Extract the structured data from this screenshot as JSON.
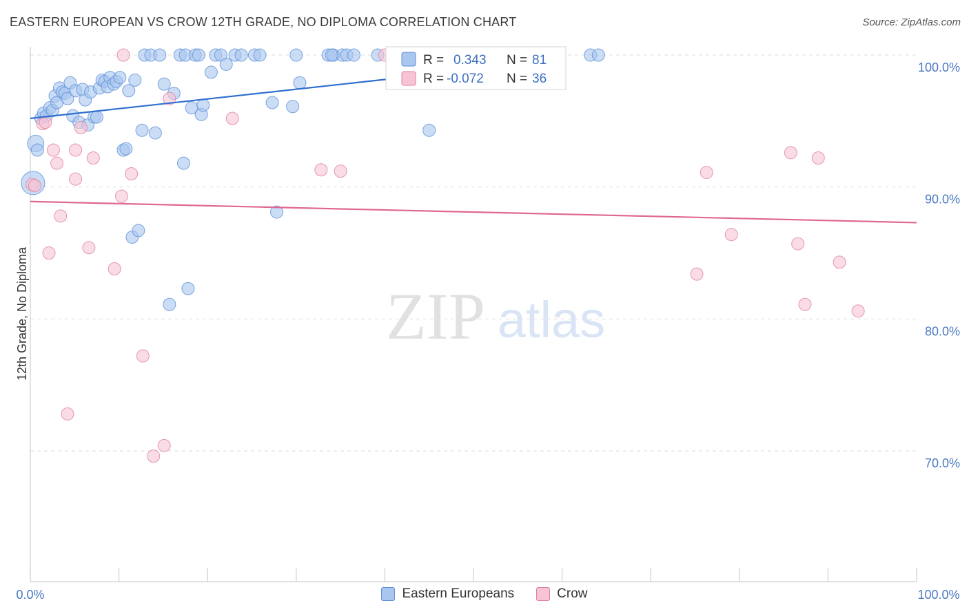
{
  "title": "EASTERN EUROPEAN VS CROW 12TH GRADE, NO DIPLOMA CORRELATION CHART",
  "source": "Source: ZipAtlas.com",
  "watermark": {
    "zip": "ZIP",
    "atlas": "atlas"
  },
  "chart_data": {
    "type": "scatter",
    "ylabel": "12th Grade, No Diploma",
    "xlim": [
      0,
      100
    ],
    "ylim": [
      60,
      101.5
    ],
    "x_tick_labels": [
      "0.0%",
      "100.0%"
    ],
    "y_ticks": [
      {
        "value": 100,
        "label": "100.0%"
      },
      {
        "value": 90,
        "label": "90.0%"
      },
      {
        "value": 80,
        "label": "80.0%"
      },
      {
        "value": 70,
        "label": "70.0%"
      }
    ],
    "grid": "horizontal-dashed",
    "legend": {
      "placement": "top-center",
      "rows": [
        {
          "r_label": "R =",
          "r_value": "0.343",
          "n_label": "N =",
          "n_value": "81"
        },
        {
          "r_label": "R =",
          "r_value": "-0.072",
          "n_label": "N =",
          "n_value": "36"
        }
      ]
    },
    "series": [
      {
        "name": "Eastern Europeans",
        "color": "#5b8fd9",
        "fill": "#a9c6ee",
        "trend": {
          "x": [
            0,
            57
          ],
          "y": [
            95.2,
            99.4
          ]
        },
        "points": [
          [
            0.3,
            90.3
          ],
          [
            0.6,
            93.3
          ],
          [
            0.8,
            92.8
          ],
          [
            1.2,
            95.2
          ],
          [
            1.5,
            95.6
          ],
          [
            1.8,
            95.4
          ],
          [
            2.2,
            96.0
          ],
          [
            2.5,
            95.8
          ],
          [
            2.8,
            96.9
          ],
          [
            3.0,
            96.4
          ],
          [
            3.3,
            97.5
          ],
          [
            3.6,
            97.2
          ],
          [
            3.9,
            97.1
          ],
          [
            4.2,
            96.7
          ],
          [
            4.5,
            97.9
          ],
          [
            4.8,
            95.4
          ],
          [
            5.1,
            97.3
          ],
          [
            5.5,
            94.9
          ],
          [
            5.9,
            97.4
          ],
          [
            6.2,
            96.6
          ],
          [
            6.5,
            94.7
          ],
          [
            6.8,
            97.2
          ],
          [
            7.2,
            95.3
          ],
          [
            7.5,
            95.3
          ],
          [
            7.8,
            97.5
          ],
          [
            8.1,
            98.1
          ],
          [
            8.4,
            98.0
          ],
          [
            8.7,
            97.6
          ],
          [
            9.0,
            98.3
          ],
          [
            9.4,
            97.8
          ],
          [
            9.7,
            98.0
          ],
          [
            10.1,
            98.3
          ],
          [
            10.5,
            92.8
          ],
          [
            10.8,
            92.9
          ],
          [
            11.1,
            97.3
          ],
          [
            11.5,
            86.2
          ],
          [
            11.8,
            98.1
          ],
          [
            12.2,
            86.7
          ],
          [
            12.6,
            94.3
          ],
          [
            12.9,
            100.0
          ],
          [
            13.6,
            100.0
          ],
          [
            14.1,
            94.1
          ],
          [
            14.6,
            100.0
          ],
          [
            15.1,
            97.8
          ],
          [
            15.7,
            81.1
          ],
          [
            16.2,
            97.1
          ],
          [
            16.9,
            100.0
          ],
          [
            17.3,
            91.8
          ],
          [
            17.5,
            100.0
          ],
          [
            17.8,
            82.3
          ],
          [
            18.2,
            96.0
          ],
          [
            18.6,
            100.0
          ],
          [
            19.0,
            100.0
          ],
          [
            19.3,
            95.5
          ],
          [
            19.5,
            96.2
          ],
          [
            20.4,
            98.7
          ],
          [
            20.9,
            100.0
          ],
          [
            21.5,
            100.0
          ],
          [
            22.1,
            99.3
          ],
          [
            23.1,
            100.0
          ],
          [
            23.8,
            100.0
          ],
          [
            25.3,
            100.0
          ],
          [
            25.9,
            100.0
          ],
          [
            27.3,
            96.4
          ],
          [
            27.8,
            88.1
          ],
          [
            29.6,
            96.1
          ],
          [
            30.0,
            100.0
          ],
          [
            30.4,
            97.9
          ],
          [
            33.6,
            100.0
          ],
          [
            34.2,
            100.0
          ],
          [
            35.2,
            100.0
          ],
          [
            35.7,
            100.0
          ],
          [
            36.5,
            100.0
          ],
          [
            39.2,
            100.0
          ],
          [
            42.1,
            100.0
          ],
          [
            45.0,
            94.3
          ],
          [
            46.1,
            100.0
          ],
          [
            63.2,
            100.0
          ],
          [
            64.1,
            100.0
          ],
          [
            44.0,
            100.0
          ],
          [
            34.0,
            100.0
          ]
        ]
      },
      {
        "name": "Crow",
        "color": "#e07ea0",
        "fill": "#f7c4d5",
        "trend": {
          "x": [
            0,
            100
          ],
          "y": [
            88.9,
            87.3
          ]
        },
        "points": [
          [
            0.2,
            90.2
          ],
          [
            0.5,
            90.1
          ],
          [
            1.4,
            94.8
          ],
          [
            1.7,
            94.9
          ],
          [
            2.1,
            85.0
          ],
          [
            2.6,
            92.8
          ],
          [
            3.0,
            91.8
          ],
          [
            3.4,
            87.8
          ],
          [
            4.2,
            72.8
          ],
          [
            5.1,
            92.8
          ],
          [
            5.1,
            90.6
          ],
          [
            5.7,
            94.5
          ],
          [
            6.6,
            85.4
          ],
          [
            7.1,
            92.2
          ],
          [
            9.5,
            83.8
          ],
          [
            10.3,
            89.3
          ],
          [
            10.5,
            100.0
          ],
          [
            11.4,
            91.0
          ],
          [
            12.7,
            77.2
          ],
          [
            13.9,
            69.6
          ],
          [
            15.1,
            70.4
          ],
          [
            15.7,
            96.7
          ],
          [
            22.8,
            95.2
          ],
          [
            32.8,
            91.3
          ],
          [
            35.0,
            91.2
          ],
          [
            40.0,
            100.0
          ],
          [
            57.0,
            100.0
          ],
          [
            75.2,
            83.4
          ],
          [
            76.3,
            91.1
          ],
          [
            79.1,
            86.4
          ],
          [
            85.8,
            92.6
          ],
          [
            86.6,
            85.7
          ],
          [
            87.4,
            81.1
          ],
          [
            88.9,
            92.2
          ],
          [
            91.3,
            84.3
          ],
          [
            93.4,
            80.6
          ]
        ]
      }
    ]
  }
}
